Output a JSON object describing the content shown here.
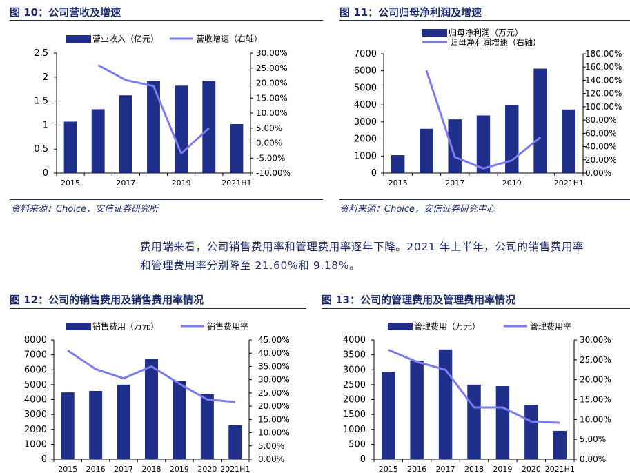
{
  "fig10": {
    "title": "图 10：公司营收及增速",
    "source": "资料来源：Choice，安信证券研究所"
  },
  "fig11": {
    "title": "图 11：公司归母净利润及增速",
    "source": "资料来源：Choice，安信证券研究中心"
  },
  "fig12": {
    "title": "图 12：公司的销售费用及销售费用率情况"
  },
  "fig13": {
    "title": "图 13：公司的管理费用及管理费用率情况"
  },
  "text": {
    "line1": "费用端来看，公司销售费用率和管理费用率逐年下降。2021 年上半年，公司的销售费用率",
    "line2": "和管理费用率分别降至 21.60%和 9.18%。"
  },
  "colors": {
    "bar": "#1f2f8a",
    "line": "#7b7cf2",
    "title": "#1a2a6c"
  },
  "chart_data": [
    {
      "id": "fig10",
      "type": "bar+line",
      "title": "公司营收及增速",
      "categories": [
        "2015",
        "2016",
        "2017",
        "2018",
        "2019",
        "2020",
        "2021H1"
      ],
      "x_tick_labels": [
        "2015",
        "",
        "2017",
        "",
        "2019",
        "",
        "2021H1"
      ],
      "series": [
        {
          "name": "营业收入（亿元）",
          "kind": "bar",
          "axis": "left",
          "values": [
            1.07,
            1.33,
            1.62,
            1.92,
            1.82,
            1.92,
            1.02
          ]
        },
        {
          "name": "营收增速（右轴）",
          "kind": "line",
          "axis": "right",
          "values": [
            null,
            0.26,
            0.21,
            0.19,
            -0.035,
            0.05,
            null
          ]
        }
      ],
      "left_axis": {
        "min": 0,
        "max": 2.5,
        "ticks": [
          "0",
          "0.5",
          "1",
          "1.5",
          "2",
          "2.5"
        ]
      },
      "right_axis": {
        "min": -0.1,
        "max": 0.3,
        "ticks": [
          "-10.00%",
          "-5.00%",
          "0.00%",
          "5.00%",
          "10.00%",
          "15.00%",
          "20.00%",
          "25.00%",
          "30.00%"
        ]
      },
      "legend": "top"
    },
    {
      "id": "fig11",
      "type": "bar+line",
      "title": "公司归母净利润及增速",
      "categories": [
        "2015",
        "2016",
        "2017",
        "2018",
        "2019",
        "2020",
        "2021H1"
      ],
      "x_tick_labels": [
        "2015",
        "",
        "2017",
        "",
        "2019",
        "",
        "2021H1"
      ],
      "series": [
        {
          "name": "归母净利润（万元）",
          "kind": "bar",
          "axis": "left",
          "values": [
            1050,
            2600,
            3150,
            3380,
            4000,
            6130,
            3730
          ]
        },
        {
          "name": "归母净利润增速（右轴）",
          "kind": "line",
          "axis": "right",
          "values": [
            null,
            1.55,
            0.24,
            0.07,
            0.19,
            0.54,
            null
          ]
        }
      ],
      "left_axis": {
        "min": 0,
        "max": 7000,
        "ticks": [
          "0",
          "1000",
          "2000",
          "3000",
          "4000",
          "5000",
          "6000",
          "7000"
        ]
      },
      "right_axis": {
        "min": 0,
        "max": 1.8,
        "ticks": [
          "0.00%",
          "20.00%",
          "40.00%",
          "60.00%",
          "80.00%",
          "100.00%",
          "120.00%",
          "140.00%",
          "160.00%",
          "180.00%"
        ]
      },
      "legend": "top"
    },
    {
      "id": "fig12",
      "type": "bar+line",
      "title": "公司的销售费用及销售费用率情况",
      "categories": [
        "2015",
        "2016",
        "2017",
        "2018",
        "2019",
        "2020",
        "2021H1"
      ],
      "x_tick_labels": [
        "2015",
        "2016",
        "2017",
        "2018",
        "2019",
        "2020",
        "2021H1"
      ],
      "series": [
        {
          "name": "销售费用（万元）",
          "kind": "bar",
          "axis": "left",
          "values": [
            4480,
            4580,
            5000,
            6720,
            5230,
            4350,
            2270
          ]
        },
        {
          "name": "销售费用率",
          "kind": "line",
          "axis": "right",
          "values": [
            0.41,
            0.34,
            0.305,
            0.35,
            0.285,
            0.225,
            0.216
          ]
        }
      ],
      "left_axis": {
        "min": 0,
        "max": 8000,
        "ticks": [
          "0",
          "1000",
          "2000",
          "3000",
          "4000",
          "5000",
          "6000",
          "7000",
          "8000"
        ]
      },
      "right_axis": {
        "min": 0,
        "max": 0.45,
        "ticks": [
          "0.00%",
          "5.00%",
          "10.00%",
          "15.00%",
          "20.00%",
          "25.00%",
          "30.00%",
          "35.00%",
          "40.00%",
          "45.00%"
        ]
      },
      "legend": "top"
    },
    {
      "id": "fig13",
      "type": "bar+line",
      "title": "公司的管理费用及管理费用率情况",
      "categories": [
        "2015",
        "2016",
        "2017",
        "2018",
        "2019",
        "2020",
        "2021H1"
      ],
      "x_tick_labels": [
        "2015",
        "2016",
        "2017",
        "2018",
        "2019",
        "2020",
        "2021H1"
      ],
      "series": [
        {
          "name": "管理费用（万元）",
          "kind": "bar",
          "axis": "left",
          "values": [
            2930,
            3300,
            3680,
            2500,
            2450,
            1820,
            950
          ]
        },
        {
          "name": "管理费用率",
          "kind": "line",
          "axis": "right",
          "values": [
            0.275,
            0.245,
            0.225,
            0.13,
            0.13,
            0.095,
            0.0918
          ]
        }
      ],
      "left_axis": {
        "min": 0,
        "max": 4000,
        "ticks": [
          "0",
          "500",
          "1000",
          "1500",
          "2000",
          "2500",
          "3000",
          "3500",
          "4000"
        ]
      },
      "right_axis": {
        "min": 0,
        "max": 0.3,
        "ticks": [
          "0.00%",
          "5.00%",
          "10.00%",
          "15.00%",
          "20.00%",
          "25.00%",
          "30.00%"
        ]
      },
      "legend": "top"
    }
  ]
}
